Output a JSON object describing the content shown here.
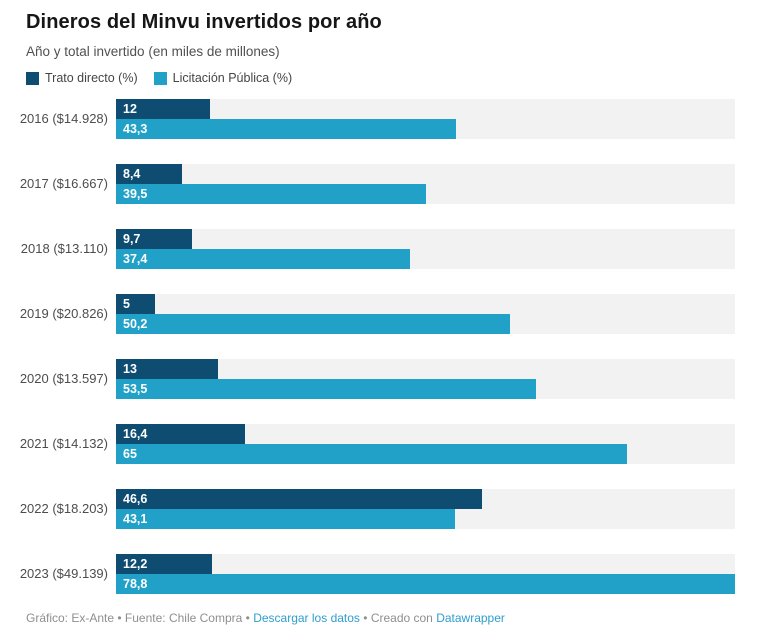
{
  "header": {
    "title": "Dineros del Minvu invertidos por año",
    "subtitle": "Año y total invertido (en miles de millones)"
  },
  "chart_data": {
    "type": "bar",
    "orientation": "horizontal",
    "grouped": true,
    "title": "Dineros del Minvu invertidos por año",
    "subtitle": "Año y total invertido (en miles de millones)",
    "categories": [
      "2016 ($14.928)",
      "2017 ($16.667)",
      "2018 ($13.110)",
      "2019 ($20.826)",
      "2020 ($13.597)",
      "2021 ($14.132)",
      "2022 ($18.203)",
      "2023 ($49.139)"
    ],
    "series": [
      {
        "name": "Trato directo (%)",
        "color": "#0e4d71",
        "values": [
          12,
          8.4,
          9.7,
          5,
          13,
          16.4,
          46.6,
          12.2
        ],
        "labels": [
          "12",
          "8,4",
          "9,7",
          "5",
          "13",
          "16,4",
          "46,6",
          "12,2"
        ]
      },
      {
        "name": "Licitación Pública (%)",
        "color": "#21a1c8",
        "values": [
          43.3,
          39.5,
          37.4,
          50.2,
          53.5,
          65,
          43.1,
          78.8
        ],
        "labels": [
          "43,3",
          "39,5",
          "37,4",
          "50,2",
          "53,5",
          "65",
          "43,1",
          "78,8"
        ]
      }
    ],
    "xlim": [
      0,
      78.8
    ],
    "legend_position": "top",
    "grid": false,
    "row_band_color": "#f2f2f2"
  },
  "footer": {
    "credit": "Gráfico: Ex-Ante",
    "source": "Fuente: Chile Compra",
    "download_label": "Descargar los datos",
    "created_label": "Creado con",
    "tool_label": "Datawrapper",
    "bullet": "•"
  }
}
